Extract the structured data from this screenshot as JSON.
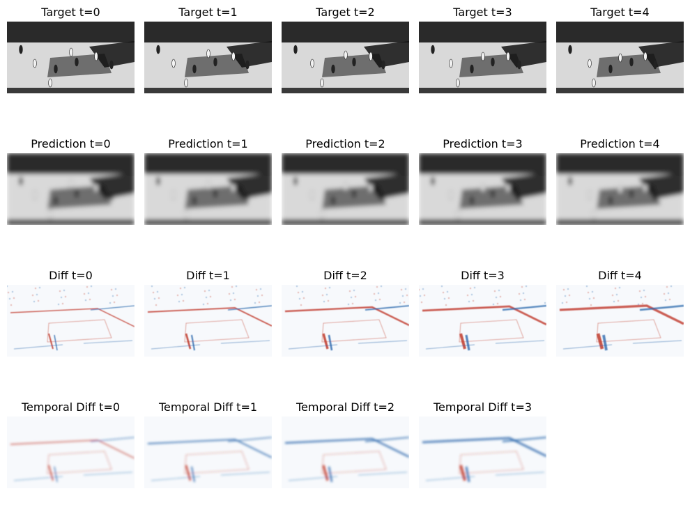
{
  "rows": [
    {
      "kind": "target",
      "titles": [
        "Target t=0",
        "Target t=1",
        "Target t=2",
        "Target t=3",
        "Target t=4"
      ]
    },
    {
      "kind": "prediction",
      "titles": [
        "Prediction t=0",
        "Prediction t=1",
        "Prediction t=2",
        "Prediction t=3",
        "Prediction t=4"
      ]
    },
    {
      "kind": "diff",
      "titles": [
        "Diff t=0",
        "Diff t=1",
        "Diff t=2",
        "Diff t=3",
        "Diff t=4"
      ]
    },
    {
      "kind": "temporal",
      "titles": [
        "Temporal Diff t=0",
        "Temporal Diff t=1",
        "Temporal Diff t=2",
        "Temporal Diff t=3"
      ]
    }
  ],
  "colors": {
    "background": "#ffffff",
    "court_light": "#d9d9d9",
    "court_paint": "#6e6e6e",
    "crowd_dark": "#2a2a2a",
    "diff_positive": "#c0392b",
    "diff_negative": "#1f5fa8"
  }
}
